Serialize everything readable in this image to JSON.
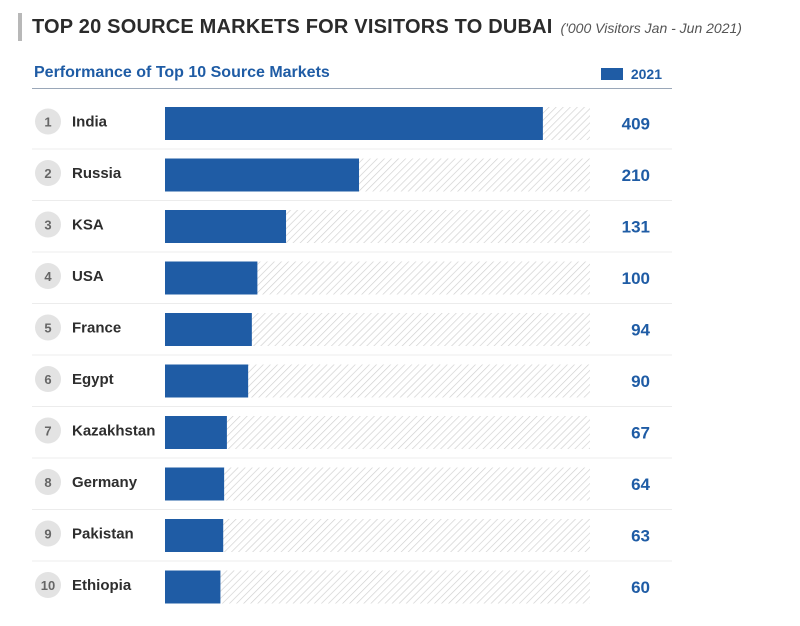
{
  "header": {
    "title": "TOP 20 SOURCE MARKETS FOR VISITORS TO DUBAI",
    "subtitle": "('000 Visitors Jan - Jun 2021)"
  },
  "colors": {
    "bar": "#1f5ca5",
    "text": "#2e2e2e",
    "rank_circle": "#e3e3e3"
  },
  "chart_data": {
    "type": "bar",
    "orientation": "horizontal",
    "title": "Performance of Top 10 Source Markets",
    "legend": [
      "2021"
    ],
    "legend_position": "top-right",
    "xlim": [
      0,
      460
    ],
    "ranks": [
      "1",
      "2",
      "3",
      "4",
      "5",
      "6",
      "7",
      "8",
      "9",
      "10"
    ],
    "categories": [
      "India",
      "Russia",
      "KSA",
      "USA",
      "France",
      "Egypt",
      "Kazakhstan",
      "Germany",
      "Pakistan",
      "Ethiopia"
    ],
    "series": [
      {
        "name": "2021",
        "values": [
          409,
          210,
          131,
          100,
          94,
          90,
          67,
          64,
          63,
          60
        ]
      }
    ]
  }
}
